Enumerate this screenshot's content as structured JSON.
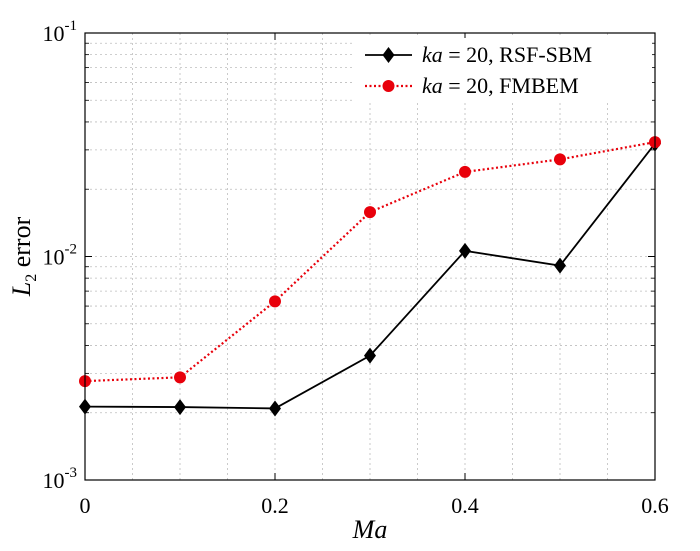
{
  "chart_data": {
    "type": "line",
    "x": [
      0,
      0.1,
      0.2,
      0.3,
      0.4,
      0.5,
      0.6
    ],
    "series": [
      {
        "name_italic": "ka",
        "name_rest": " = 20, RSF-SBM",
        "values": [
          0.00213,
          0.00212,
          0.00209,
          0.0036,
          0.0106,
          0.0091,
          0.032
        ],
        "color": "#000000",
        "marker": "diamond",
        "line_style": "solid"
      },
      {
        "name_italic": "ka",
        "name_rest": " = 20, FMBEM",
        "values": [
          0.00277,
          0.00288,
          0.0063,
          0.0158,
          0.0239,
          0.0272,
          0.0325
        ],
        "color": "#e8000b",
        "marker": "circle",
        "line_style": "dotted"
      }
    ],
    "xlabel": "Ma",
    "ylabel_main": "L",
    "ylabel_sub": "2",
    "ylabel_rest": " error",
    "xlim": [
      0,
      0.6
    ],
    "ylim": [
      0.001,
      0.1
    ],
    "yscale": "log",
    "xticks": [
      "0",
      "0.2",
      "0.4",
      "0.6"
    ],
    "yticks": [
      {
        "base": "10",
        "exp": "-3"
      },
      {
        "base": "10",
        "exp": "-2"
      },
      {
        "base": "10",
        "exp": "-1"
      }
    ],
    "grid": true,
    "legend_position": "top-right"
  }
}
